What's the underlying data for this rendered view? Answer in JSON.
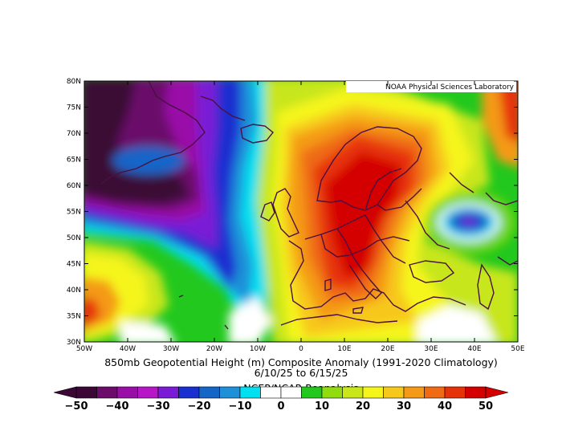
{
  "map": {
    "credit": "NOAA Physical Sciences Laboratory",
    "title_line1": "850mb Geopotential Height (m) Composite Anomaly (1991-2020 Climatology)",
    "title_line2": "6/10/25  to 6/15/25",
    "title_line3": "NCEP/NCAR Reanalysis",
    "lat_labels": [
      "80N",
      "75N",
      "70N",
      "65N",
      "60N",
      "55N",
      "50N",
      "45N",
      "40N",
      "35N",
      "30N"
    ],
    "lon_labels": [
      "50W",
      "40W",
      "30W",
      "20W",
      "10W",
      "0",
      "10E",
      "20E",
      "30E",
      "40E",
      "50E"
    ],
    "colorbar": {
      "labels": [
        "−50",
        "−40",
        "−30",
        "−20",
        "−10",
        "0",
        "10",
        "20",
        "30",
        "40",
        "50"
      ],
      "colors": [
        "#3b0836",
        "#6b0c6b",
        "#9a0ea8",
        "#b716c8",
        "#7a1bd6",
        "#1a2fd0",
        "#1565c8",
        "#1e90d8",
        "#00e0f0",
        "#ffffff",
        "#ffffff",
        "#22c81e",
        "#90dc10",
        "#c8e61a",
        "#f5f51c",
        "#f7c81c",
        "#f49a18",
        "#ef6a12",
        "#e63208",
        "#d40000"
      ]
    }
  }
}
